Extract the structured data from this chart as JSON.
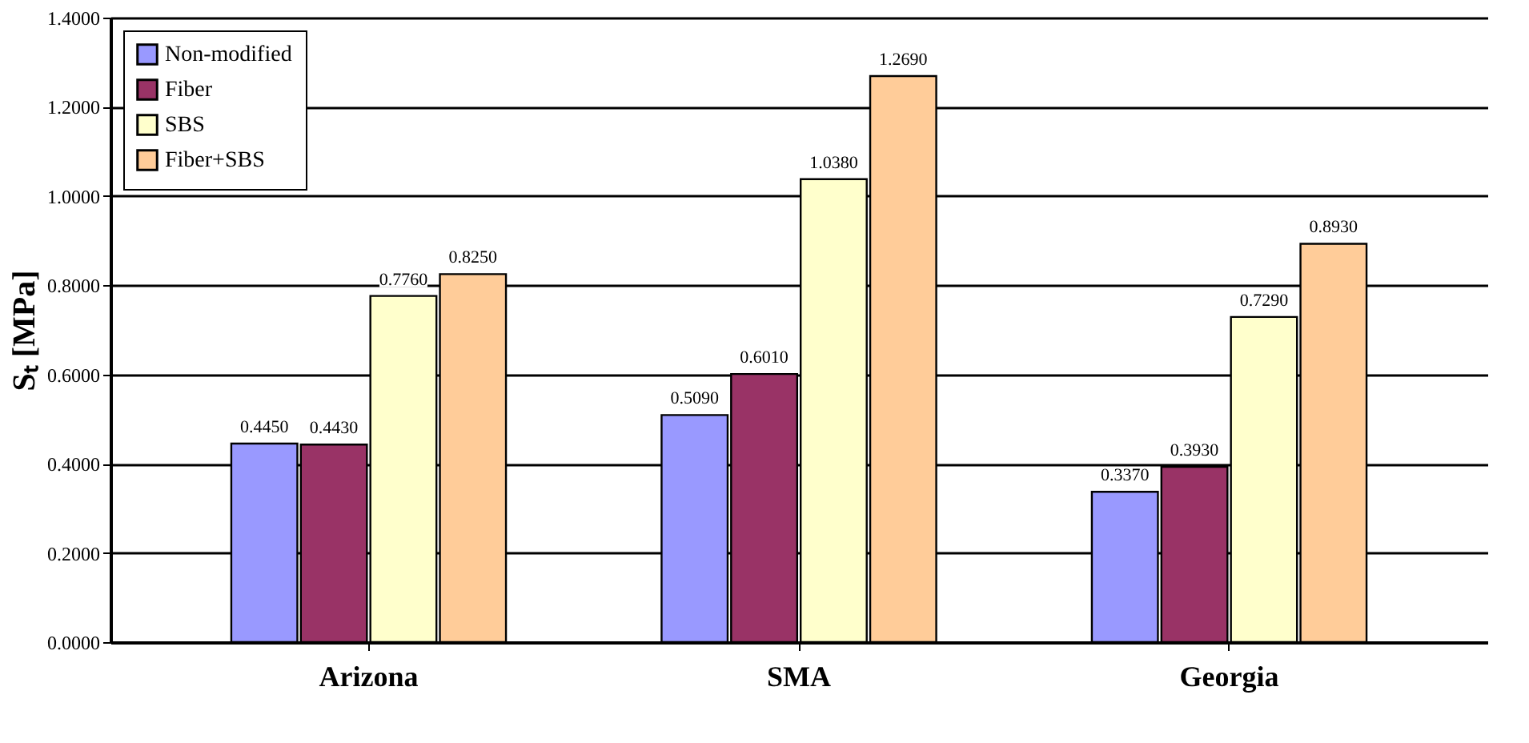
{
  "chart_data": {
    "type": "bar",
    "ylabel": "Sₜ [MPa]",
    "categories": [
      "Arizona",
      "SMA",
      "Georgia"
    ],
    "series": [
      {
        "name": "Non-modified",
        "color": "#9999ff",
        "values": [
          0.445,
          0.509,
          0.337
        ],
        "value_labels": [
          "0.4450",
          "0.5090",
          "0.3370"
        ]
      },
      {
        "name": "Fiber",
        "color": "#993366",
        "values": [
          0.443,
          0.601,
          0.393
        ],
        "value_labels": [
          "0.4430",
          "0.6010",
          "0.3930"
        ]
      },
      {
        "name": "SBS",
        "color": "#ffffcc",
        "values": [
          0.776,
          1.038,
          0.729
        ],
        "value_labels": [
          "0.7760",
          "1.0380",
          "0.7290"
        ]
      },
      {
        "name": "Fiber+SBS",
        "color": "#ffcc99",
        "values": [
          0.825,
          1.269,
          0.893
        ],
        "value_labels": [
          "0.8250",
          "1.2690",
          "0.8930"
        ]
      }
    ],
    "ylim": [
      0,
      1.4
    ],
    "yticks": [
      {
        "value": 0,
        "label": "0.0000"
      },
      {
        "value": 0.2,
        "label": "0.2000"
      },
      {
        "value": 0.4,
        "label": "0.4000"
      },
      {
        "value": 0.6,
        "label": "0.6000"
      },
      {
        "value": 0.8,
        "label": "0.8000"
      },
      {
        "value": 1.0,
        "label": "1.0000"
      },
      {
        "value": 1.2,
        "label": "1.2000"
      },
      {
        "value": 1.4,
        "label": "1.4000"
      }
    ],
    "grid": "y",
    "legend": "top left"
  }
}
